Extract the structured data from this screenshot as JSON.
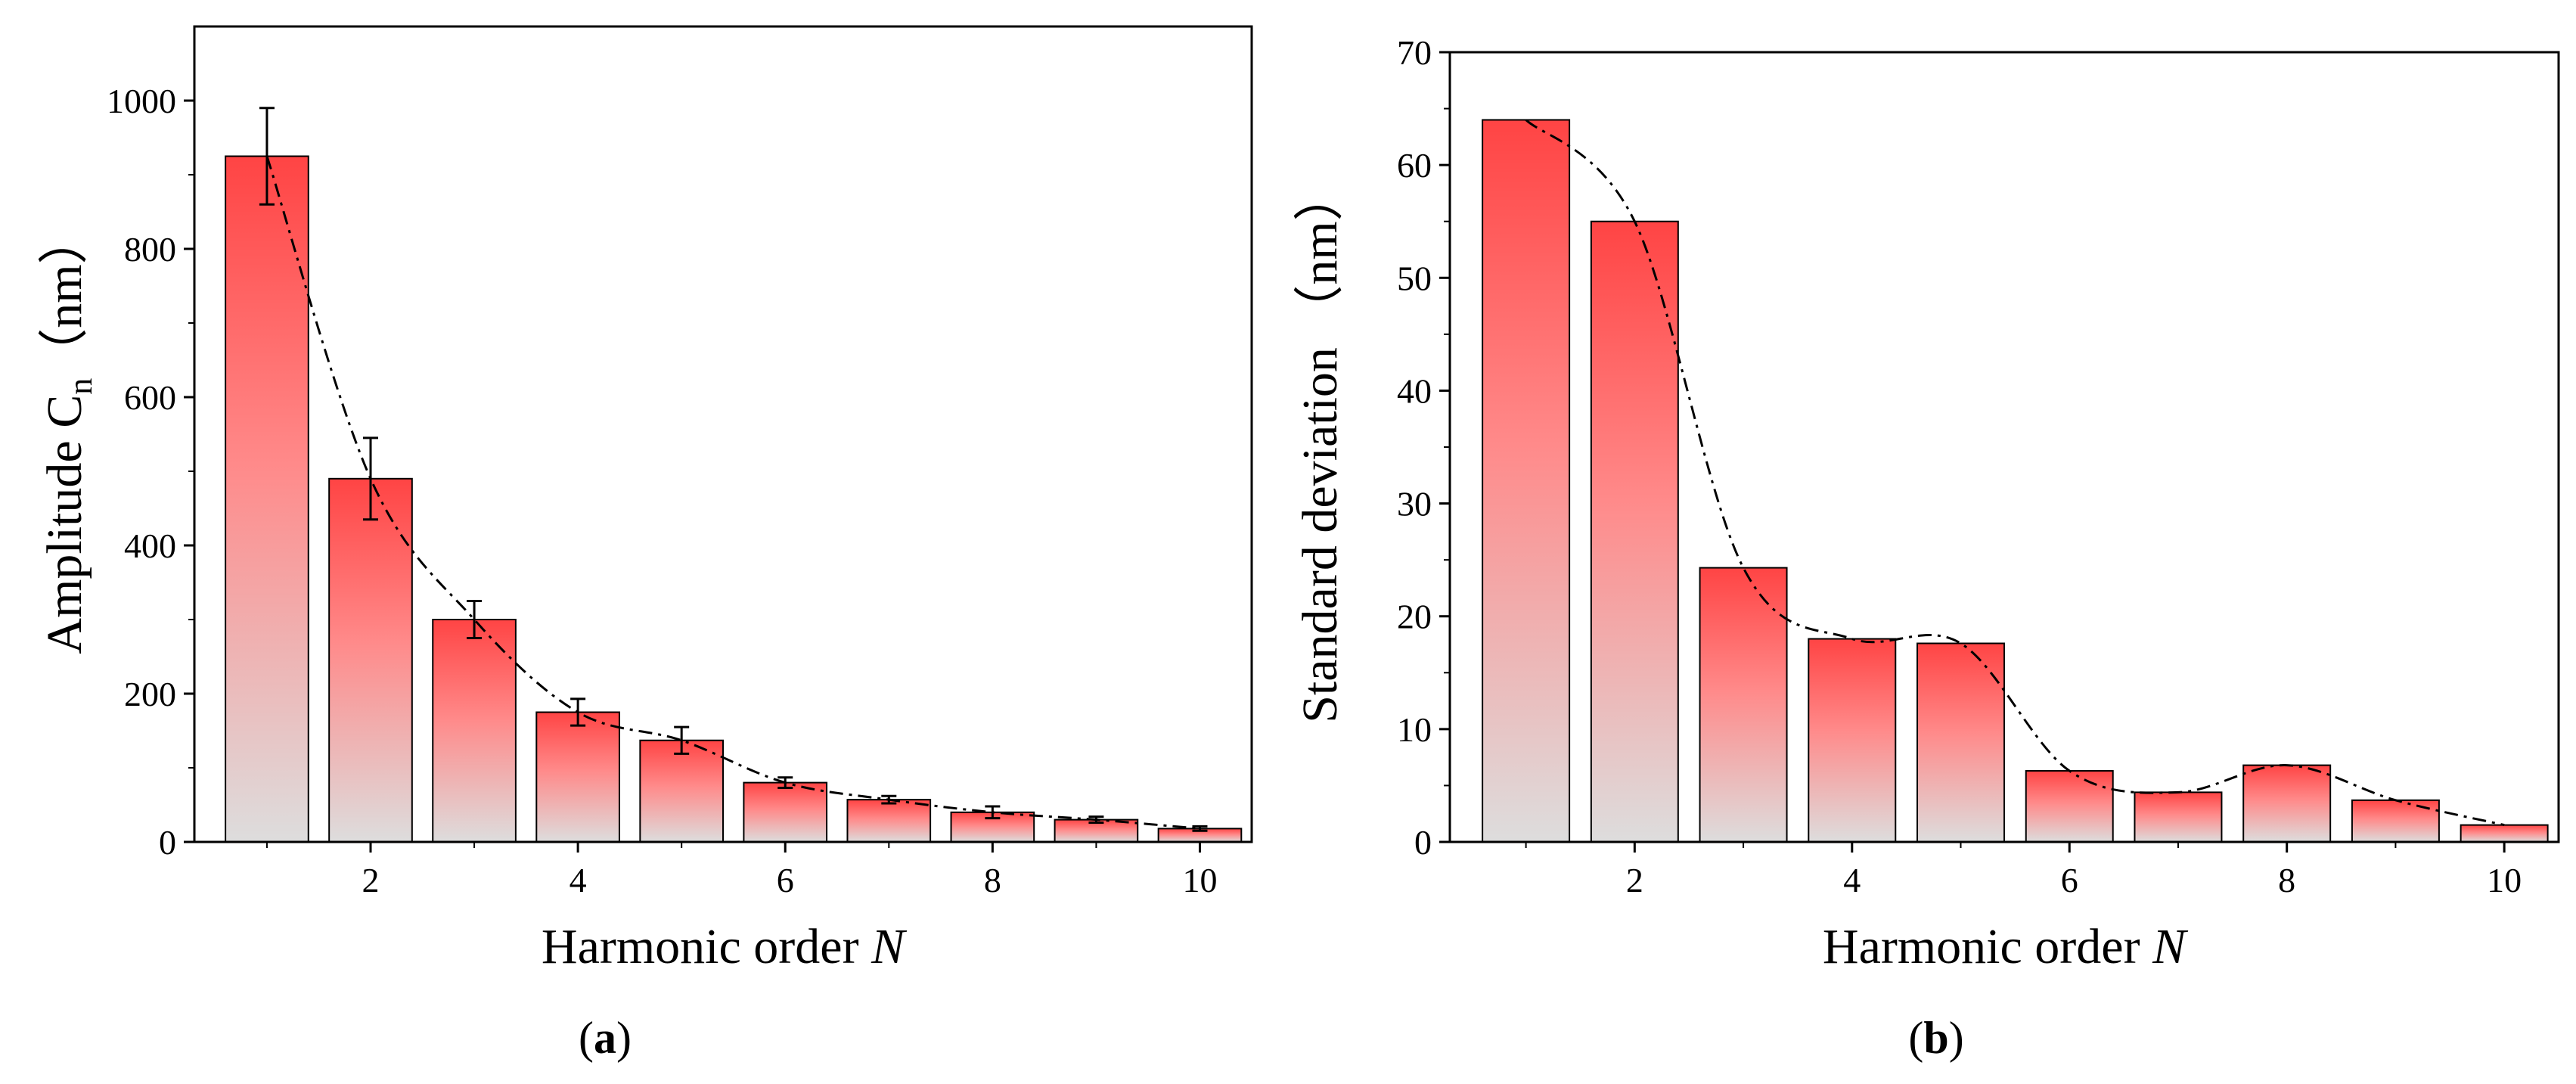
{
  "chart_data": [
    {
      "type": "bar",
      "panel_label": "(a)",
      "panel_letter": "a",
      "x": [
        1,
        2,
        3,
        4,
        5,
        6,
        7,
        8,
        9,
        10
      ],
      "values": [
        925,
        490,
        300,
        175,
        137,
        80,
        57,
        40,
        30,
        18
      ],
      "errors": [
        65,
        55,
        25,
        18,
        18,
        7,
        5,
        8,
        4,
        3
      ],
      "xlabel": "Harmonic order N",
      "xlabel_text": "Harmonic order ",
      "xlabel_var": "N",
      "ylabel": "Amplitude Cn（nm）",
      "ylabel_text": "Amplitude C",
      "ylabel_sub": "n",
      "ylabel_unit": "（nm）",
      "xticks": [
        2,
        4,
        6,
        8,
        10
      ],
      "yticks": [
        0,
        200,
        400,
        600,
        800,
        1000
      ],
      "xlim": [
        0.3,
        10.5
      ],
      "ylim": [
        0,
        1100
      ],
      "trend": "smooth dash-dot curve through bar tops",
      "bar_gradient": [
        "#ff4444",
        "#dddddd"
      ]
    },
    {
      "type": "bar",
      "panel_label": "(b)",
      "panel_letter": "b",
      "x": [
        1,
        2,
        3,
        4,
        5,
        6,
        7,
        8,
        9,
        10
      ],
      "values": [
        64,
        55,
        24.3,
        18,
        17.6,
        6.3,
        4.4,
        6.8,
        3.7,
        1.5
      ],
      "xlabel": "Harmonic order N",
      "xlabel_text": "Harmonic order ",
      "xlabel_var": "N",
      "ylabel": "Standard deviation （nm）",
      "xticks": [
        2,
        4,
        6,
        8,
        10
      ],
      "yticks": [
        0,
        10,
        20,
        30,
        40,
        50,
        60,
        70
      ],
      "xlim": [
        0.3,
        10.5
      ],
      "ylim": [
        0,
        70
      ],
      "trend": "smooth dash-dot curve through bar tops",
      "bar_gradient": [
        "#ff4444",
        "#dddddd"
      ]
    }
  ]
}
